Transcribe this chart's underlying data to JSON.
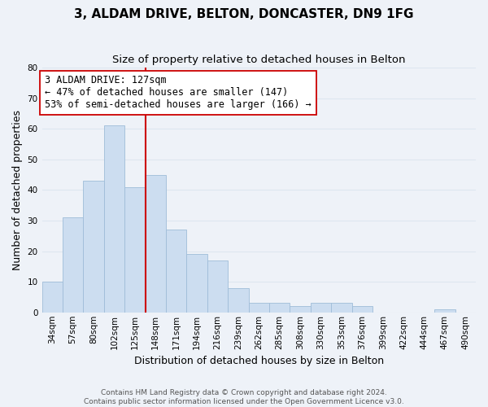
{
  "title": "3, ALDAM DRIVE, BELTON, DONCASTER, DN9 1FG",
  "subtitle": "Size of property relative to detached houses in Belton",
  "xlabel": "Distribution of detached houses by size in Belton",
  "ylabel": "Number of detached properties",
  "bin_labels": [
    "34sqm",
    "57sqm",
    "80sqm",
    "102sqm",
    "125sqm",
    "148sqm",
    "171sqm",
    "194sqm",
    "216sqm",
    "239sqm",
    "262sqm",
    "285sqm",
    "308sqm",
    "330sqm",
    "353sqm",
    "376sqm",
    "399sqm",
    "422sqm",
    "444sqm",
    "467sqm",
    "490sqm"
  ],
  "bar_values": [
    10,
    31,
    43,
    61,
    41,
    45,
    27,
    19,
    17,
    8,
    3,
    3,
    2,
    3,
    3,
    2,
    0,
    0,
    0,
    1,
    0
  ],
  "bar_color": "#ccddf0",
  "bar_edge_color": "#9fbcd8",
  "vline_bin_index": 4,
  "vline_color": "#cc0000",
  "annotation_line1": "3 ALDAM DRIVE: 127sqm",
  "annotation_line2": "← 47% of detached houses are smaller (147)",
  "annotation_line3": "53% of semi-detached houses are larger (166) →",
  "annotation_box_color": "#ffffff",
  "annotation_box_edge": "#cc0000",
  "ylim": [
    0,
    80
  ],
  "yticks": [
    0,
    10,
    20,
    30,
    40,
    50,
    60,
    70,
    80
  ],
  "grid_color": "#dde6f0",
  "background_color": "#eef2f8",
  "plot_bg_color": "#eef2f8",
  "footer_text": "Contains HM Land Registry data © Crown copyright and database right 2024.\nContains public sector information licensed under the Open Government Licence v3.0.",
  "title_fontsize": 11,
  "subtitle_fontsize": 9.5,
  "axis_label_fontsize": 9,
  "tick_fontsize": 7.5,
  "annotation_fontsize": 8.5,
  "footer_fontsize": 6.5
}
